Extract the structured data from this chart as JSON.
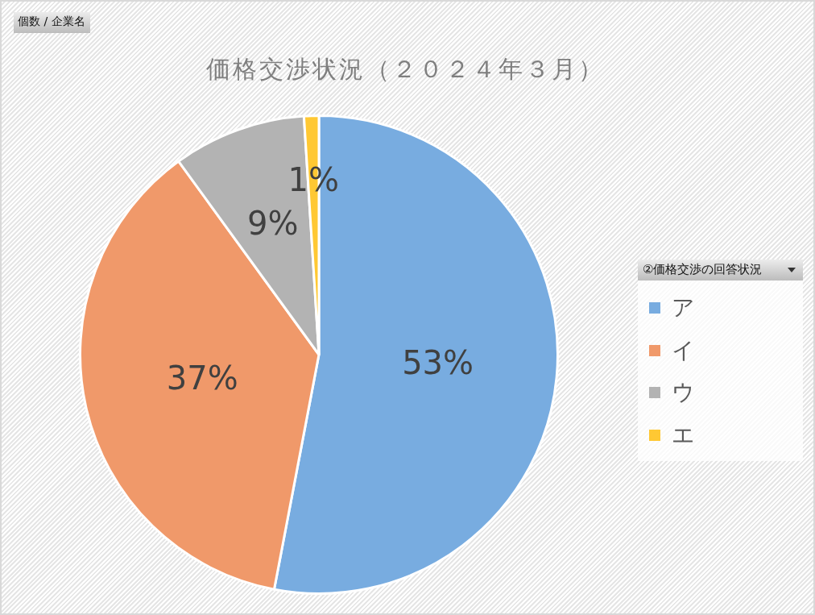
{
  "chart_data": {
    "type": "pie",
    "title": "価格交渉状況（２０２４年３月）",
    "annotations": [
      "個数 / 企業名"
    ],
    "legend_title": "②価格交渉の回答状況",
    "legend": "right",
    "categories": [
      "ア",
      "イ",
      "ウ",
      "エ"
    ],
    "values": [
      53,
      37,
      9,
      1
    ],
    "value_labels": [
      "53%",
      "37%",
      "9%",
      "1%"
    ],
    "colors": [
      "#78ace0",
      "#f0996a",
      "#b3b3b3",
      "#ffc833"
    ]
  }
}
